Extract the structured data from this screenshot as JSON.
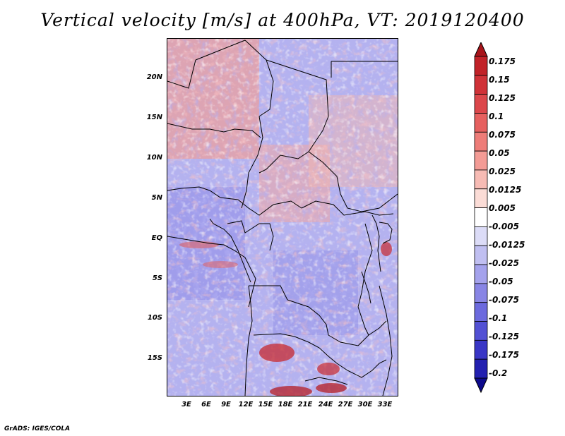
{
  "title": "Vertical velocity [m/s] at 400hPa, VT: 2019120400",
  "variable": "Vertical velocity",
  "units": "m/s",
  "level": "400hPa",
  "valid_time": "2019120400",
  "latitude_labels": [
    "20N",
    "15N",
    "10N",
    "5N",
    "EQ",
    "5S",
    "10S",
    "15S"
  ],
  "longitude_labels": [
    "3E",
    "6E",
    "9E",
    "12E",
    "15E",
    "18E",
    "21E",
    "24E",
    "27E",
    "30E",
    "33E"
  ],
  "colorbar": {
    "labels": [
      "0.175",
      "0.15",
      "0.125",
      "0.1",
      "0.075",
      "0.05",
      "0.025",
      "0.0125",
      "0.005",
      "-0.005",
      "-0.0125",
      "-0.025",
      "-0.05",
      "-0.075",
      "-0.1",
      "-0.125",
      "-0.175",
      "-0.2"
    ],
    "colors": [
      "#a8141a",
      "#c12228",
      "#d03238",
      "#dc474b",
      "#e6605f",
      "#ee7c78",
      "#f39b95",
      "#f7bbb4",
      "#fbdcd6",
      "#ffffff",
      "#dcdcf7",
      "#c0bff1",
      "#a4a2ec",
      "#8885e5",
      "#6c6ade",
      "#5250d4",
      "#3936c6",
      "#2320b0",
      "#0d0a8c"
    ],
    "extends": "both"
  },
  "credit": "GrADS: IGES/COLA"
}
